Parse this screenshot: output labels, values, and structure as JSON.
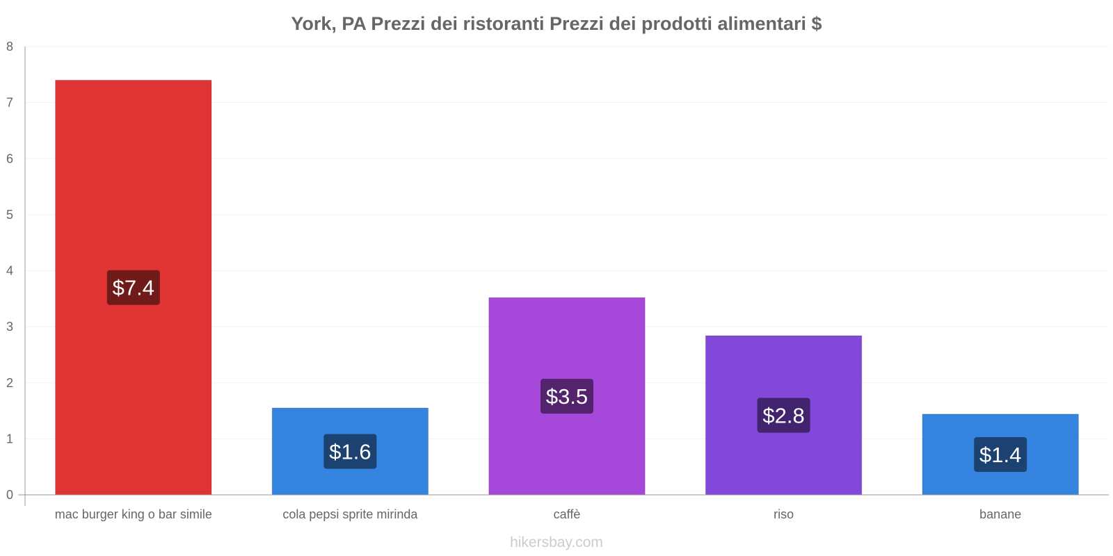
{
  "chart_data": {
    "type": "bar",
    "title": "York, PA Prezzi dei ristoranti Prezzi dei prodotti alimentari $",
    "xlabel": "",
    "ylabel": "",
    "ylim": [
      0,
      8
    ],
    "yticks": [
      "0",
      "1",
      "2",
      "3",
      "4",
      "5",
      "6",
      "7",
      "8"
    ],
    "grid": true,
    "categories": [
      "mac burger king o bar simile",
      "cola pepsi sprite mirinda",
      "caffè",
      "riso",
      "banane"
    ],
    "values": [
      7.4,
      1.55,
      3.52,
      2.84,
      1.44
    ],
    "data_labels": [
      "$7.4",
      "$1.6",
      "$3.5",
      "$2.8",
      "$1.4"
    ],
    "bar_colors": [
      "#e03434",
      "#3584e0",
      "#a648d9",
      "#8148d9",
      "#3584e0"
    ],
    "label_bg_colors": [
      "#701a1a",
      "#1b4270",
      "#53246d",
      "#41246d",
      "#1b4270"
    ]
  },
  "footer": {
    "watermark": "hikersbay.com"
  }
}
